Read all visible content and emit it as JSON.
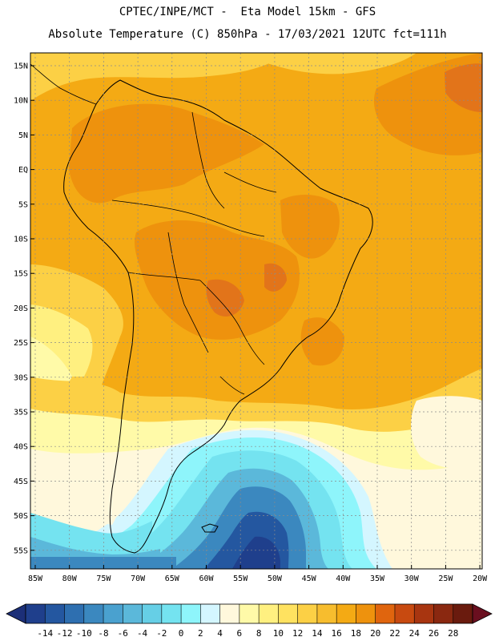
{
  "header": {
    "line1": "CPTEC/INPE/MCT -  Eta Model 15km - GFS",
    "line2": "Absolute Temperature (C) 850hPa - 17/03/2021 12UTC fct=111h"
  },
  "axes": {
    "lat_labels": [
      "15N",
      "10N",
      "5N",
      "EQ",
      "5S",
      "10S",
      "15S",
      "20S",
      "25S",
      "30S",
      "35S",
      "40S",
      "45S",
      "50S",
      "55S"
    ],
    "lon_labels": [
      "85W",
      "80W",
      "75W",
      "70W",
      "65W",
      "60W",
      "55W",
      "50W",
      "45W",
      "40W",
      "35W",
      "30W",
      "25W",
      "20W"
    ]
  },
  "colorbar": {
    "ticks": [
      "-14",
      "-12",
      "-10",
      "-8",
      "-6",
      "-4",
      "-2",
      "0",
      "2",
      "4",
      "6",
      "8",
      "10",
      "12",
      "14",
      "16",
      "18",
      "20",
      "22",
      "24",
      "26",
      "28"
    ],
    "colors": [
      "#1f3f8c",
      "#2457a0",
      "#2e6fb0",
      "#3b88bf",
      "#4aa1cf",
      "#5bb8da",
      "#66cfe6",
      "#74e3f0",
      "#8ef5fb",
      "#d4f6ff",
      "#fff8dc",
      "#fffaa8",
      "#fff080",
      "#ffe260",
      "#fcd045",
      "#f7bd2e",
      "#f4aa14",
      "#ee920d",
      "#e0650e",
      "#c84a10",
      "#a83510",
      "#8a2810",
      "#6a1b0e"
    ],
    "under_color": "#1c2f78",
    "over_color": "#6a0f1f"
  },
  "legend_colors": {
    "very_warm": "#e2741a",
    "warm": "#ee920d",
    "mild": "#f4aa14",
    "pale": "#fcd045",
    "cream": "#fff8dc",
    "cool": "#74e3f0",
    "cold": "#3b88bf",
    "coldest": "#1f3f8c"
  }
}
